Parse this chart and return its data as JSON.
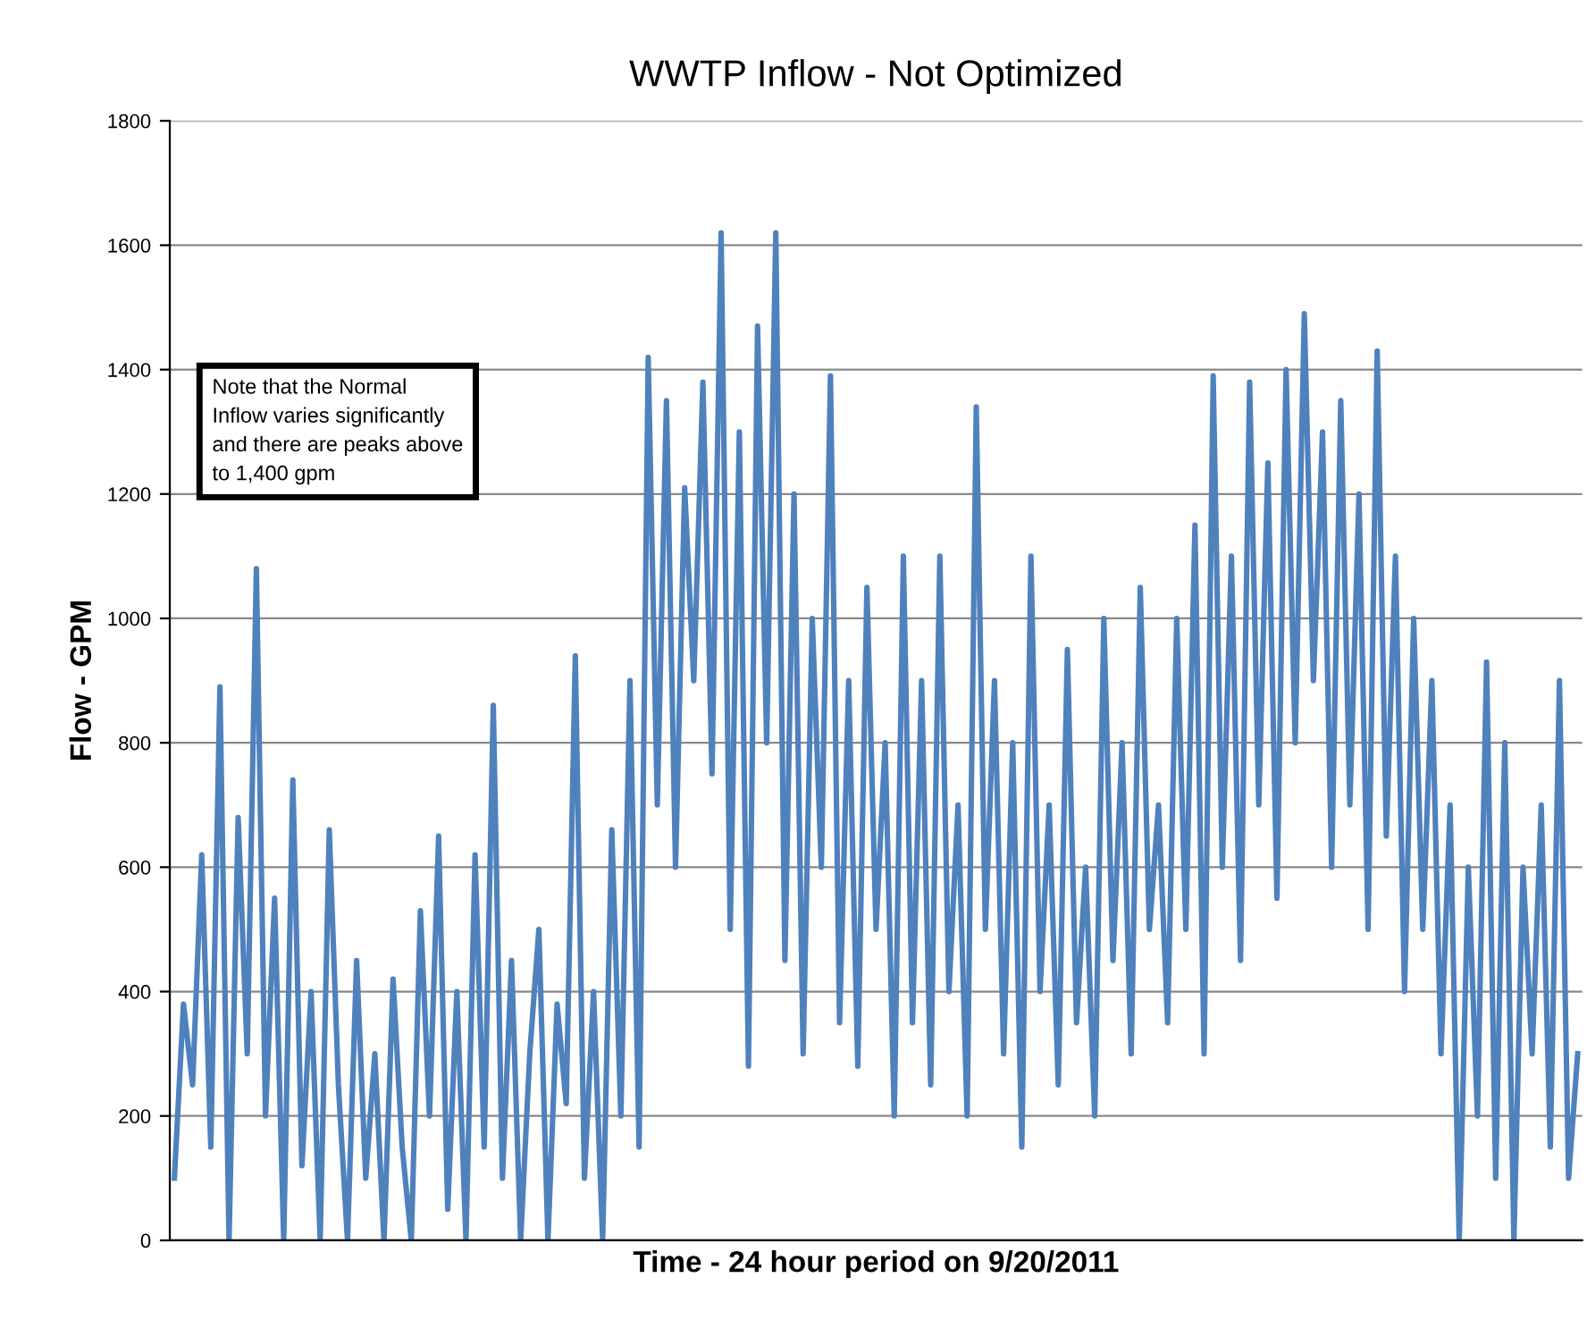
{
  "chart_data": {
    "type": "line",
    "title": "WWTP Inflow - Not Optimized",
    "xlabel": "Time - 24 hour period on 9/20/2011",
    "ylabel": "Flow - GPM",
    "annotations": [
      "Note that the Normal\nInflow varies significantly\nand there are peaks above\nto 1,400 gpm"
    ],
    "categories": [
      null,
      null,
      null,
      null,
      null,
      null,
      null,
      null,
      null,
      null,
      null,
      null,
      null,
      null,
      null,
      null,
      null,
      null,
      null,
      null,
      null,
      null,
      null,
      null,
      null,
      null,
      null,
      null,
      null,
      null,
      null,
      null,
      null,
      null,
      null,
      null,
      null,
      null,
      null,
      null,
      null,
      null,
      null,
      null,
      null,
      null,
      null,
      null,
      null,
      null,
      null,
      null,
      null,
      null,
      null,
      null,
      null,
      null,
      null,
      null,
      null,
      null,
      null,
      null,
      null,
      null,
      null,
      null,
      null,
      null,
      null,
      null,
      null,
      null,
      null,
      null,
      null,
      null,
      null,
      null,
      null,
      null,
      null,
      null,
      null,
      null,
      null,
      null,
      null,
      null,
      null,
      null,
      null,
      null,
      null,
      null,
      null,
      null,
      null,
      null,
      null,
      null,
      null,
      null,
      null,
      null,
      null,
      null,
      null,
      null,
      null,
      null,
      null,
      null,
      null,
      null,
      null,
      null,
      null,
      null,
      null,
      null,
      null,
      null,
      null,
      null,
      null,
      null,
      null,
      null,
      null,
      null,
      null,
      null,
      null,
      null,
      null,
      null,
      null,
      null,
      null,
      null,
      null,
      null,
      null,
      null,
      null,
      null,
      null,
      null,
      null,
      null,
      null,
      null,
      null
    ],
    "series": [
      {
        "color": "#4f81bd",
        "values": [
          100,
          380,
          250,
          620,
          150,
          890,
          0,
          680,
          300,
          1080,
          200,
          550,
          0,
          740,
          120,
          400,
          0,
          660,
          250,
          0,
          450,
          100,
          300,
          0,
          420,
          150,
          0,
          530,
          200,
          650,
          50,
          400,
          0,
          620,
          150,
          860,
          100,
          450,
          0,
          300,
          500,
          0,
          380,
          220,
          940,
          100,
          400,
          0,
          660,
          200,
          900,
          150,
          1420,
          700,
          1350,
          600,
          1210,
          900,
          1380,
          750,
          1620,
          500,
          1300,
          280,
          1470,
          800,
          1620,
          450,
          1200,
          300,
          1000,
          600,
          1390,
          350,
          900,
          280,
          1050,
          500,
          800,
          200,
          1100,
          350,
          900,
          250,
          1100,
          400,
          700,
          200,
          1340,
          500,
          900,
          300,
          800,
          150,
          1100,
          400,
          700,
          250,
          950,
          350,
          600,
          200,
          1000,
          450,
          800,
          300,
          1050,
          500,
          700,
          350,
          1000,
          500,
          1150,
          300,
          1390,
          600,
          1100,
          450,
          1380,
          700,
          1250,
          550,
          1400,
          800,
          1490,
          900,
          1300,
          600,
          1350,
          700,
          1200,
          500,
          1430,
          650,
          1100,
          400,
          1000,
          500,
          900,
          300,
          700,
          0,
          600,
          200,
          930,
          100,
          800,
          0,
          600,
          300,
          700,
          150,
          900,
          100,
          300
        ]
      }
    ],
    "ylim": [
      0,
      1800
    ],
    "yticks": [
      0,
      200,
      400,
      600,
      800,
      1000,
      1200,
      1400,
      1600,
      1800
    ],
    "grid": "y",
    "tick_labels": "y",
    "line_style": "solid",
    "marker": "none"
  }
}
